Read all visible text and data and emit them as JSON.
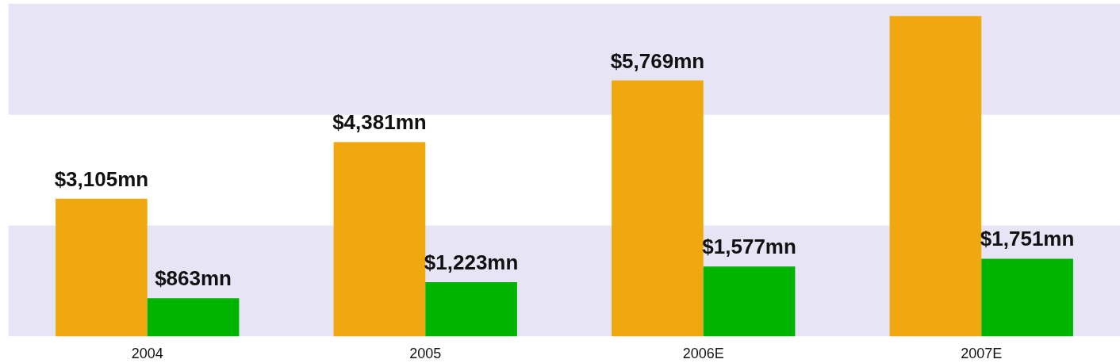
{
  "chart_data": {
    "type": "bar",
    "categories": [
      "2004",
      "2005",
      "2006E",
      "2007E"
    ],
    "series": [
      {
        "color": "#f0a810",
        "values": [
          3105,
          4381,
          5769,
          7220
        ],
        "value_labels": [
          "$3,105mn",
          "$4,381mn",
          "$5,769mn",
          null
        ]
      },
      {
        "color": "#00b400",
        "values": [
          863,
          1223,
          1577,
          1751
        ],
        "value_labels": [
          "$863mn",
          "$1,223mn",
          "$1,577mn",
          "$1,751mn"
        ]
      }
    ],
    "tick_labels": "x",
    "grid": false,
    "bands": [
      {
        "axis": "y",
        "from": 0,
        "to": 2500,
        "color": "#e6e4f5"
      },
      {
        "axis": "y",
        "from": 5000,
        "to": 7500,
        "color": "#e6e4f5"
      }
    ]
  }
}
